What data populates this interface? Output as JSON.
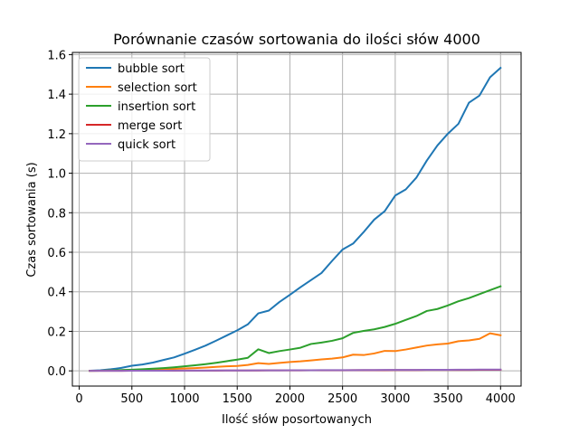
{
  "chart_data": {
    "type": "line",
    "title": "Porównanie czasów sortowania do ilości słów 4000",
    "xlabel": "Ilość słów posortowanych",
    "ylabel": "Czas sortowania (s)",
    "xlim": [
      -65,
      4195
    ],
    "ylim": [
      -0.077,
      1.611
    ],
    "xticks": [
      0,
      500,
      1000,
      1500,
      2000,
      2500,
      3000,
      3500,
      4000
    ],
    "yticks": [
      0.0,
      0.2,
      0.4,
      0.6,
      0.8,
      1.0,
      1.2,
      1.4,
      1.6
    ],
    "xtick_labels": [
      "0",
      "500",
      "1000",
      "1500",
      "2000",
      "2500",
      "3000",
      "3500",
      "4000"
    ],
    "ytick_labels": [
      "0.0",
      "0.2",
      "0.4",
      "0.6",
      "0.8",
      "1.0",
      "1.2",
      "1.4",
      "1.6"
    ],
    "grid": true,
    "legend_position": "top-left",
    "x": [
      100,
      200,
      300,
      400,
      500,
      600,
      700,
      800,
      900,
      1000,
      1100,
      1200,
      1300,
      1400,
      1500,
      1600,
      1700,
      1800,
      1900,
      2000,
      2100,
      2200,
      2300,
      2400,
      2500,
      2600,
      2700,
      2800,
      2900,
      3000,
      3100,
      3200,
      3300,
      3400,
      3500,
      3600,
      3700,
      3800,
      3900,
      4000
    ],
    "series": [
      {
        "name": "bubble sort",
        "color": "#1f77b4",
        "values": [
          0.001,
          0.003,
          0.008,
          0.015,
          0.026,
          0.032,
          0.042,
          0.055,
          0.068,
          0.087,
          0.107,
          0.128,
          0.153,
          0.179,
          0.205,
          0.235,
          0.291,
          0.305,
          0.348,
          0.385,
          0.423,
          0.459,
          0.495,
          0.556,
          0.614,
          0.644,
          0.702,
          0.765,
          0.808,
          0.887,
          0.918,
          0.977,
          1.064,
          1.14,
          1.2,
          1.25,
          1.357,
          1.393,
          1.485,
          1.533
        ]
      },
      {
        "name": "selection sort",
        "color": "#ff7f0e",
        "values": [
          0.0003,
          0.0008,
          0.002,
          0.003,
          0.004,
          0.005,
          0.007,
          0.008,
          0.01,
          0.012,
          0.014,
          0.017,
          0.02,
          0.023,
          0.025,
          0.03,
          0.039,
          0.035,
          0.04,
          0.045,
          0.048,
          0.053,
          0.058,
          0.062,
          0.068,
          0.082,
          0.08,
          0.088,
          0.101,
          0.1,
          0.108,
          0.118,
          0.128,
          0.134,
          0.138,
          0.15,
          0.154,
          0.162,
          0.19,
          0.18
        ]
      },
      {
        "name": "insertion sort",
        "color": "#2ca02c",
        "values": [
          0.0003,
          0.001,
          0.002,
          0.004,
          0.006,
          0.008,
          0.011,
          0.014,
          0.018,
          0.023,
          0.028,
          0.034,
          0.041,
          0.049,
          0.057,
          0.066,
          0.109,
          0.09,
          0.1,
          0.108,
          0.117,
          0.136,
          0.143,
          0.152,
          0.165,
          0.192,
          0.202,
          0.21,
          0.222,
          0.238,
          0.258,
          0.277,
          0.303,
          0.313,
          0.331,
          0.352,
          0.368,
          0.388,
          0.408,
          0.428
        ]
      },
      {
        "name": "merge sort",
        "color": "#d62728",
        "values": [
          0.0001,
          0.0002,
          0.0003,
          0.0004,
          0.0005,
          0.0006,
          0.0008,
          0.0009,
          0.001,
          0.0012,
          0.0013,
          0.0014,
          0.0016,
          0.0017,
          0.0019,
          0.002,
          0.0022,
          0.0023,
          0.0024,
          0.0026,
          0.0027,
          0.0029,
          0.003,
          0.0031,
          0.0033,
          0.0034,
          0.0036,
          0.0037,
          0.0039,
          0.004,
          0.0042,
          0.0043,
          0.0045,
          0.0046,
          0.0047,
          0.0049,
          0.005,
          0.0052,
          0.0053,
          0.0055
        ]
      },
      {
        "name": "quick sort",
        "color": "#9467bd",
        "values": [
          0.0001,
          0.0002,
          0.0003,
          0.0004,
          0.0006,
          0.0007,
          0.0008,
          0.001,
          0.0011,
          0.0013,
          0.0014,
          0.0016,
          0.0017,
          0.0019,
          0.002,
          0.0022,
          0.0024,
          0.0025,
          0.0027,
          0.0029,
          0.003,
          0.0032,
          0.0034,
          0.0036,
          0.0037,
          0.0039,
          0.0041,
          0.0043,
          0.0045,
          0.0046,
          0.0048,
          0.005,
          0.0052,
          0.0054,
          0.0056,
          0.0058,
          0.006,
          0.0062,
          0.0064,
          0.0066
        ]
      }
    ]
  }
}
